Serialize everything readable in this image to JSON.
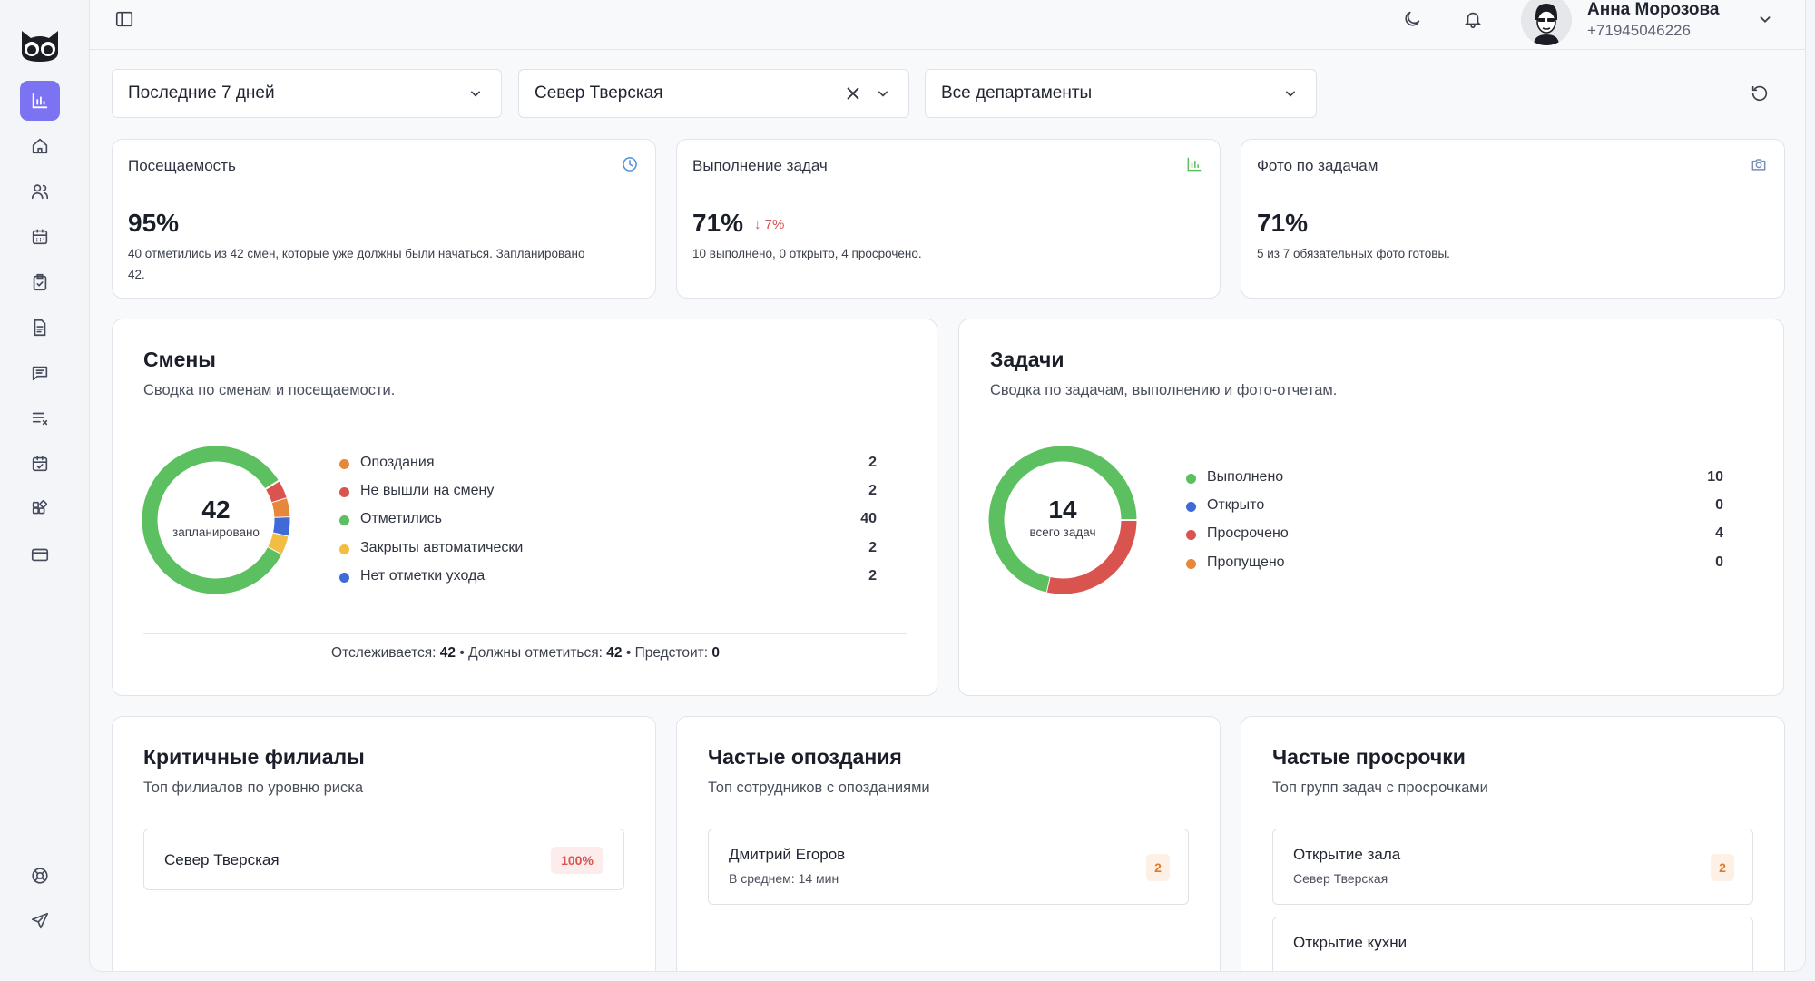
{
  "header": {
    "user_name": "Анна Морозова",
    "user_phone": "+71945046226"
  },
  "sidebar": {
    "items": [
      {
        "icon": "bar-chart-icon",
        "active": true
      },
      {
        "icon": "home-icon"
      },
      {
        "icon": "users-icon"
      },
      {
        "icon": "calendar-icon"
      },
      {
        "icon": "clipboard-check-icon"
      },
      {
        "icon": "document-icon"
      },
      {
        "icon": "message-icon"
      },
      {
        "icon": "list-x-icon"
      },
      {
        "icon": "calendar-check-icon"
      },
      {
        "icon": "widgets-icon"
      },
      {
        "icon": "card-icon"
      }
    ],
    "bottom": [
      {
        "icon": "lifebuoy-icon"
      },
      {
        "icon": "send-icon"
      }
    ]
  },
  "filters": {
    "period": "Последние 7 дней",
    "branch": "Север Тверская",
    "department": "Все департаменты"
  },
  "stats": {
    "attendance": {
      "title": "Посещаемость",
      "value": "95%",
      "desc": "40 отметились из 42 смен, которые уже должны были начаться. Запланировано 42."
    },
    "tasks": {
      "title": "Выполнение задач",
      "value": "71%",
      "delta": "7%",
      "desc": "10 выполнено, 0 открыто, 4 просрочено."
    },
    "photos": {
      "title": "Фото по задачам",
      "value": "71%",
      "desc": "5 из 7 обязательных фото готовы."
    }
  },
  "shifts": {
    "title": "Смены",
    "subtitle": "Сводка по сменам и посещаемости.",
    "center_value": "42",
    "center_label": "запланировано",
    "legend": [
      {
        "label": "Опоздания",
        "value": "2",
        "color": "#e6873a"
      },
      {
        "label": "Не вышли на смену",
        "value": "2",
        "color": "#d9534f"
      },
      {
        "label": "Отметились",
        "value": "40",
        "color": "#5cbf60"
      },
      {
        "label": "Закрыты автоматически",
        "value": "2",
        "color": "#f2bd42"
      },
      {
        "label": "Нет отметки ухода",
        "value": "2",
        "color": "#3f6ad8"
      }
    ],
    "summary": {
      "tracked_label": "Отслеживается:",
      "tracked": "42",
      "due_label": "Должны отметиться:",
      "due": "42",
      "upcoming_label": "Предстоит:",
      "upcoming": "0"
    }
  },
  "tasks_section": {
    "title": "Задачи",
    "subtitle": "Сводка по задачам, выполнению и фото-отчетам.",
    "center_value": "14",
    "center_label": "всего задач",
    "legend": [
      {
        "label": "Выполнено",
        "value": "10",
        "color": "#5cbf60"
      },
      {
        "label": "Открыто",
        "value": "0",
        "color": "#3f6ad8"
      },
      {
        "label": "Просрочено",
        "value": "4",
        "color": "#d9534f"
      },
      {
        "label": "Пропущено",
        "value": "0",
        "color": "#e6873a"
      }
    ]
  },
  "critical": {
    "title": "Критичные филиалы",
    "subtitle": "Топ филиалов по уровню риска",
    "items": [
      {
        "name": "Север Тверская",
        "badge": "100%"
      }
    ]
  },
  "late": {
    "title": "Частые опоздания",
    "subtitle": "Топ сотрудников с опозданиями",
    "items": [
      {
        "name": "Дмитрий Егоров",
        "sub": "В среднем: 14 мин",
        "badge": "2"
      }
    ]
  },
  "overdue": {
    "title": "Частые просрочки",
    "subtitle": "Топ групп задач с просрочками",
    "items": [
      {
        "name": "Открытие зала",
        "sub": "Север Тверская",
        "badge": "2"
      },
      {
        "name": "Открытие кухни"
      }
    ]
  }
}
